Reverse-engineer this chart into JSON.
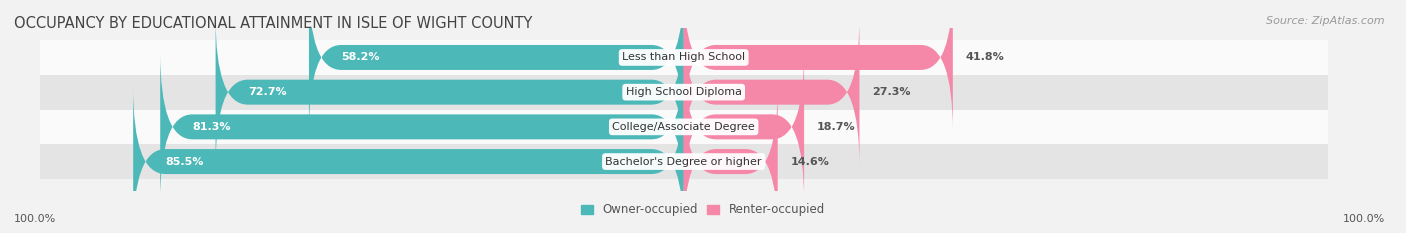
{
  "title": "OCCUPANCY BY EDUCATIONAL ATTAINMENT IN ISLE OF WIGHT COUNTY",
  "source": "Source: ZipAtlas.com",
  "categories": [
    "Less than High School",
    "High School Diploma",
    "College/Associate Degree",
    "Bachelor's Degree or higher"
  ],
  "owner_pct": [
    58.2,
    72.7,
    81.3,
    85.5
  ],
  "renter_pct": [
    41.8,
    27.3,
    18.7,
    14.6
  ],
  "owner_color": "#4db8b8",
  "renter_color": "#f587a8",
  "bg_color": "#f2f2f2",
  "row_bg_color": "#e4e4e4",
  "row_white_color": "#fafafa",
  "title_fontsize": 10.5,
  "source_fontsize": 8,
  "label_fontsize": 8,
  "tick_fontsize": 8,
  "legend_fontsize": 8.5,
  "axis_label_left": "100.0%",
  "axis_label_right": "100.0%",
  "bar_height": 0.72,
  "total_width": 100
}
